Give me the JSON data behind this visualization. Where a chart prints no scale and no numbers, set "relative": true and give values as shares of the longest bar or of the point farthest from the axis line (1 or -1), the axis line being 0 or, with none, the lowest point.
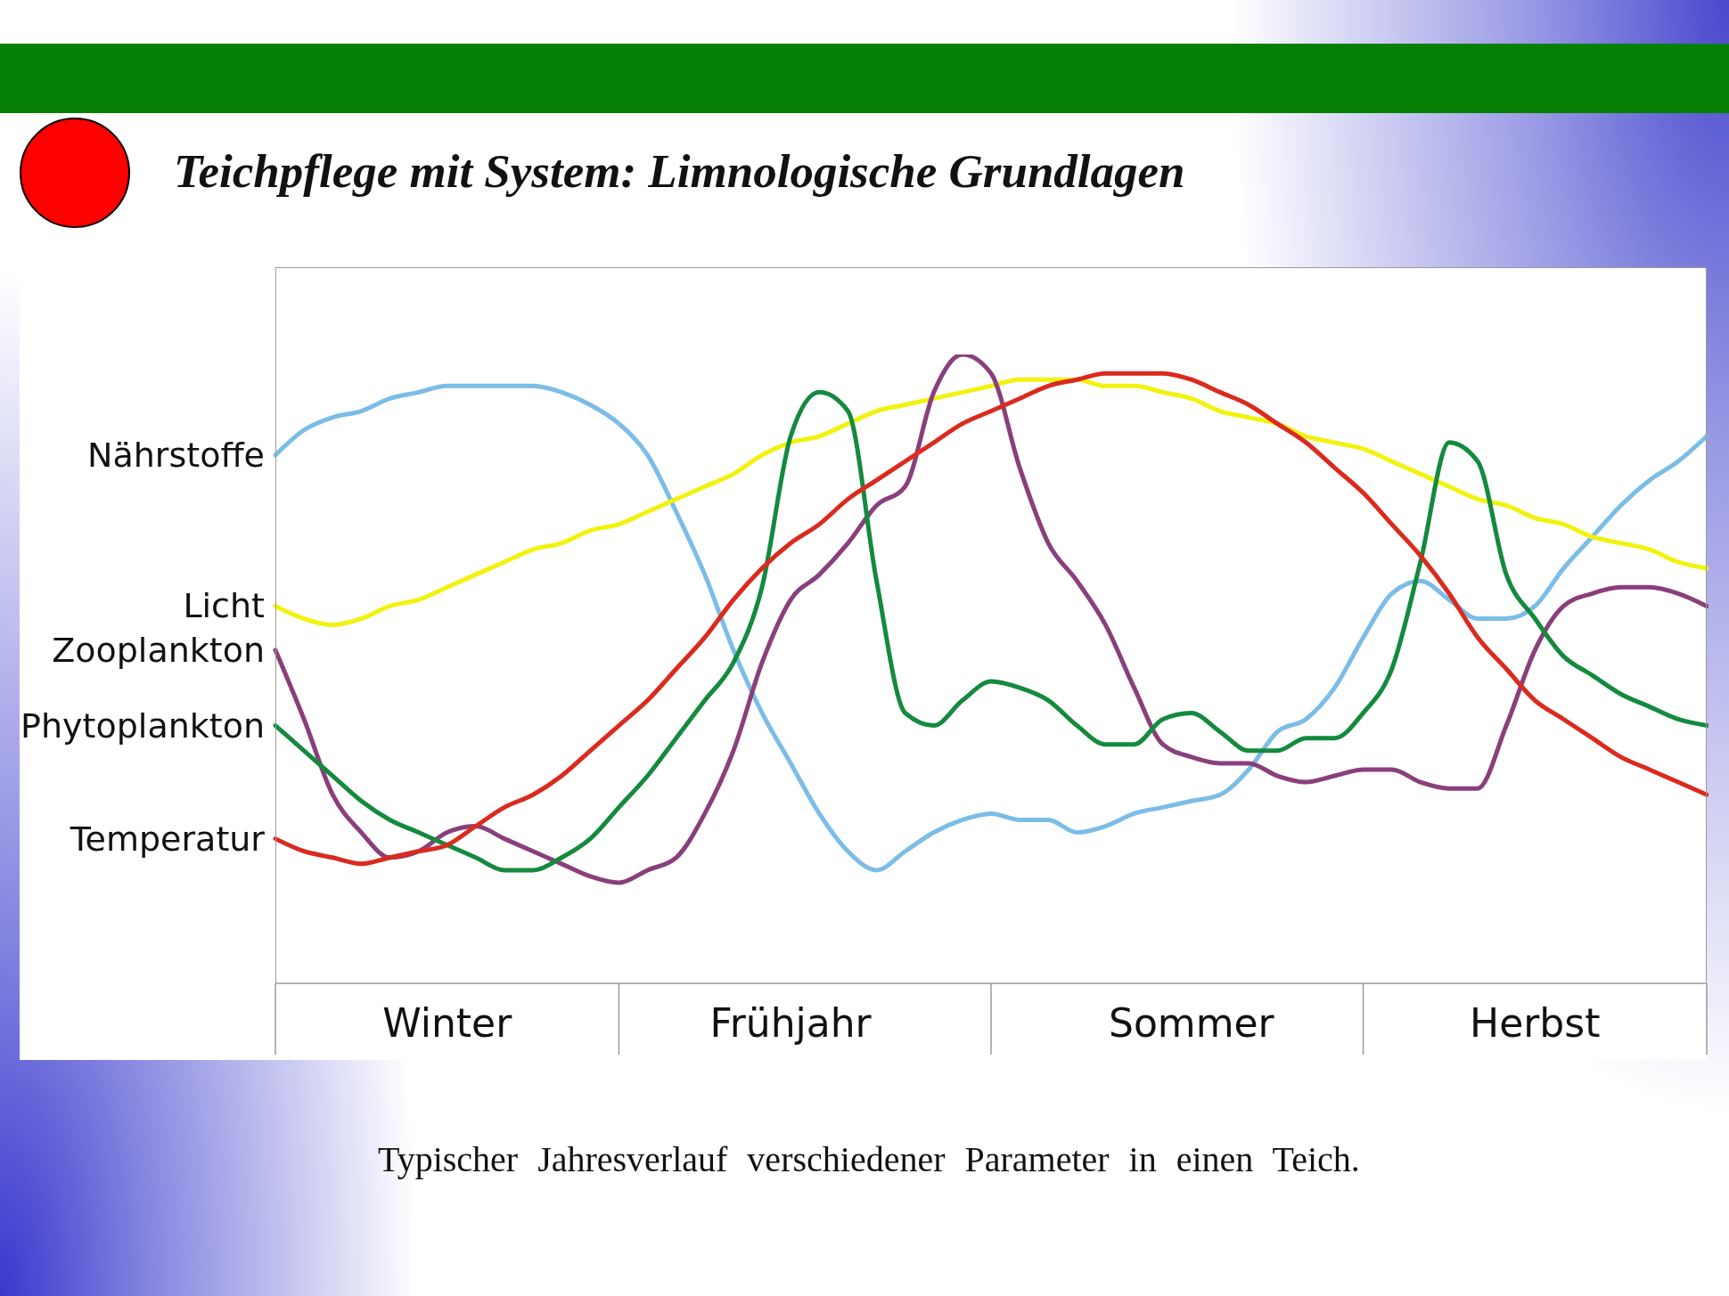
{
  "chart_data": {
    "type": "line",
    "title": "Teichpflege mit System: Limnologische Grundlagen",
    "annotations": [
      "Typischer Jahresverlauf verschiedener Parameter in einen Teich."
    ],
    "relative": true,
    "categories": [
      null,
      null,
      null,
      null,
      null,
      null,
      "Winter",
      null,
      null,
      null,
      null,
      null,
      null,
      null,
      null,
      null,
      null,
      null,
      "Frühjahr",
      null,
      null,
      null,
      null,
      null,
      null,
      null,
      null,
      null,
      null,
      null,
      null,
      null,
      "Sommer",
      null,
      null,
      null,
      null,
      null,
      null,
      null,
      null,
      null,
      null,
      null,
      "Herbst",
      null,
      null,
      null,
      null,
      null,
      null
    ],
    "series": [
      {
        "name": "Nährstoffe",
        "color": "#7bbde6",
        "values": [
          0.84,
          0.88,
          0.9,
          0.91,
          0.93,
          0.94,
          0.95,
          0.95,
          0.95,
          0.95,
          0.94,
          0.92,
          0.89,
          0.84,
          0.75,
          0.65,
          0.53,
          0.43,
          0.35,
          0.27,
          0.21,
          0.18,
          0.21,
          0.24,
          0.26,
          0.27,
          0.26,
          0.26,
          0.24,
          0.25,
          0.27,
          0.28,
          0.29,
          0.3,
          0.34,
          0.4,
          0.42,
          0.47,
          0.55,
          0.62,
          0.64,
          0.61,
          0.58,
          0.58,
          0.6,
          0.66,
          0.71,
          0.76,
          0.8,
          0.83,
          0.87
        ]
      },
      {
        "name": "Licht",
        "color": "#f2f20f",
        "values": [
          0.6,
          0.58,
          0.57,
          0.58,
          0.6,
          0.61,
          0.63,
          0.65,
          0.67,
          0.69,
          0.7,
          0.72,
          0.73,
          0.75,
          0.77,
          0.79,
          0.81,
          0.84,
          0.86,
          0.87,
          0.89,
          0.91,
          0.92,
          0.93,
          0.94,
          0.95,
          0.96,
          0.96,
          0.96,
          0.95,
          0.95,
          0.94,
          0.93,
          0.91,
          0.9,
          0.89,
          0.87,
          0.86,
          0.85,
          0.83,
          0.81,
          0.79,
          0.77,
          0.76,
          0.74,
          0.73,
          0.71,
          0.7,
          0.69,
          0.67,
          0.66
        ]
      },
      {
        "name": "Zooplankton",
        "color": "#8a3f7c",
        "values": [
          0.53,
          0.42,
          0.3,
          0.24,
          0.2,
          0.21,
          0.24,
          0.25,
          0.23,
          0.21,
          0.19,
          0.17,
          0.16,
          0.18,
          0.2,
          0.27,
          0.37,
          0.51,
          0.61,
          0.65,
          0.7,
          0.76,
          0.79,
          0.94,
          1.0,
          0.97,
          0.82,
          0.7,
          0.64,
          0.57,
          0.47,
          0.38,
          0.36,
          0.35,
          0.35,
          0.33,
          0.32,
          0.33,
          0.34,
          0.34,
          0.32,
          0.31,
          0.31,
          0.41,
          0.53,
          0.6,
          0.62,
          0.63,
          0.63,
          0.62,
          0.6
        ]
      },
      {
        "name": "Phytoplankton",
        "color": "#148a3e",
        "values": [
          0.41,
          0.37,
          0.33,
          0.29,
          0.26,
          0.24,
          0.22,
          0.2,
          0.18,
          0.18,
          0.2,
          0.23,
          0.28,
          0.33,
          0.39,
          0.45,
          0.51,
          0.63,
          0.87,
          0.94,
          0.91,
          0.64,
          0.43,
          0.41,
          0.45,
          0.48,
          0.47,
          0.45,
          0.41,
          0.38,
          0.38,
          0.42,
          0.43,
          0.4,
          0.37,
          0.37,
          0.39,
          0.39,
          0.43,
          0.5,
          0.67,
          0.86,
          0.83,
          0.65,
          0.58,
          0.52,
          0.49,
          0.46,
          0.44,
          0.42,
          0.41
        ]
      },
      {
        "name": "Temperatur",
        "color": "#db2a1e",
        "values": [
          0.23,
          0.21,
          0.2,
          0.19,
          0.2,
          0.21,
          0.22,
          0.25,
          0.28,
          0.3,
          0.33,
          0.37,
          0.41,
          0.45,
          0.5,
          0.55,
          0.61,
          0.66,
          0.7,
          0.73,
          0.77,
          0.8,
          0.83,
          0.86,
          0.89,
          0.91,
          0.93,
          0.95,
          0.96,
          0.97,
          0.97,
          0.97,
          0.96,
          0.94,
          0.92,
          0.89,
          0.86,
          0.82,
          0.78,
          0.73,
          0.68,
          0.62,
          0.55,
          0.5,
          0.45,
          0.42,
          0.39,
          0.36,
          0.34,
          0.32,
          0.3
        ]
      }
    ]
  }
}
